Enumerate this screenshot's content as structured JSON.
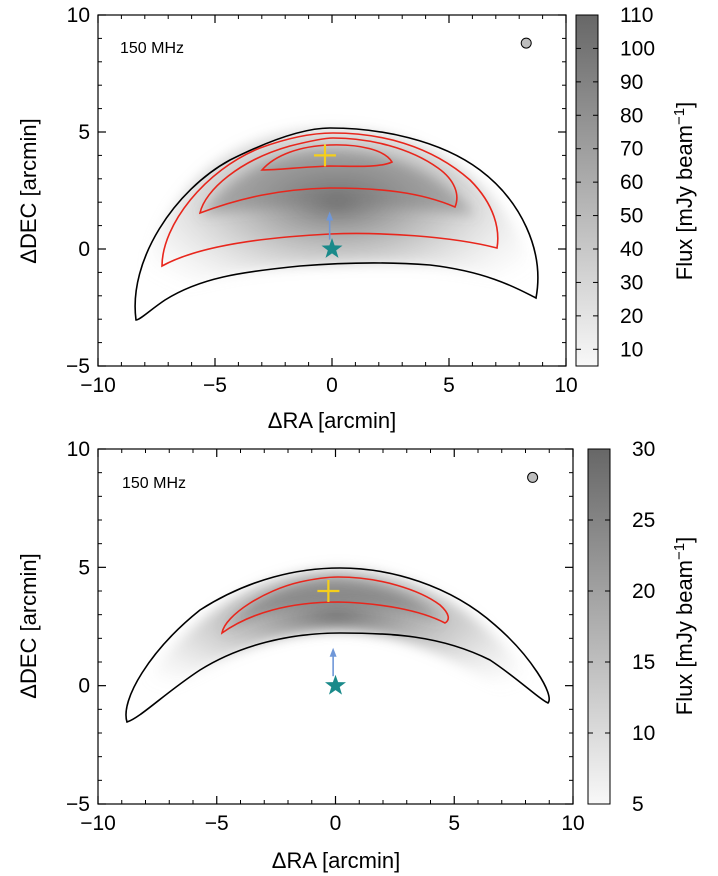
{
  "chart_data": [
    {
      "type": "heatmap",
      "annotation": "150 MHz",
      "xlabel": "ΔRA [arcmin]",
      "ylabel": "ΔDEC [arcmin]",
      "xlim": [
        -10,
        10
      ],
      "ylim": [
        -5,
        10
      ],
      "xticks": [
        "−10",
        "−5",
        "0",
        "5",
        "10"
      ],
      "yticks": [
        "−5",
        "0",
        "5",
        "10"
      ],
      "colorbar": {
        "label": "Flux [mJy beam",
        "label_sup": "−1",
        "label_end": "]",
        "range": [
          5,
          110
        ],
        "ticks": [
          "10",
          "20",
          "30",
          "40",
          "50",
          "60",
          "70",
          "80",
          "90",
          "100",
          "110"
        ],
        "cmap": "greys"
      },
      "outer_contour_color": "#000000",
      "inner_contour_color": "#e8261c",
      "peak_marker": {
        "x": -0.3,
        "y": 4.0,
        "color": "#f5cf1a"
      },
      "source_marker": {
        "x": 0,
        "y": 0,
        "color": "#1a8a8a"
      },
      "arrow": {
        "from": [
          -0.1,
          0.4
        ],
        "to": [
          -0.1,
          1.6
        ],
        "color": "#6f97d8"
      },
      "beam": {
        "x": 8.3,
        "y": 8.8
      }
    },
    {
      "type": "heatmap",
      "annotation": "150 MHz",
      "xlabel": "ΔRA [arcmin]",
      "ylabel": "ΔDEC [arcmin]",
      "xlim": [
        -10,
        10
      ],
      "ylim": [
        -5,
        10
      ],
      "xticks": [
        "−10",
        "−5",
        "0",
        "5",
        "10"
      ],
      "yticks": [
        "−5",
        "0",
        "5",
        "10"
      ],
      "colorbar": {
        "label": "Flux [mJy beam",
        "label_sup": "−1",
        "label_end": "]",
        "range": [
          5,
          30
        ],
        "ticks": [
          "5",
          "10",
          "15",
          "20",
          "25",
          "30"
        ],
        "cmap": "greys"
      },
      "outer_contour_color": "#000000",
      "inner_contour_color": "#e8261c",
      "peak_marker": {
        "x": -0.3,
        "y": 4.0,
        "color": "#f5cf1a"
      },
      "source_marker": {
        "x": 0,
        "y": 0,
        "color": "#1a8a8a"
      },
      "arrow": {
        "from": [
          -0.1,
          0.4
        ],
        "to": [
          -0.1,
          1.6
        ],
        "color": "#6f97d8"
      },
      "beam": {
        "x": 8.3,
        "y": 8.8
      }
    }
  ]
}
